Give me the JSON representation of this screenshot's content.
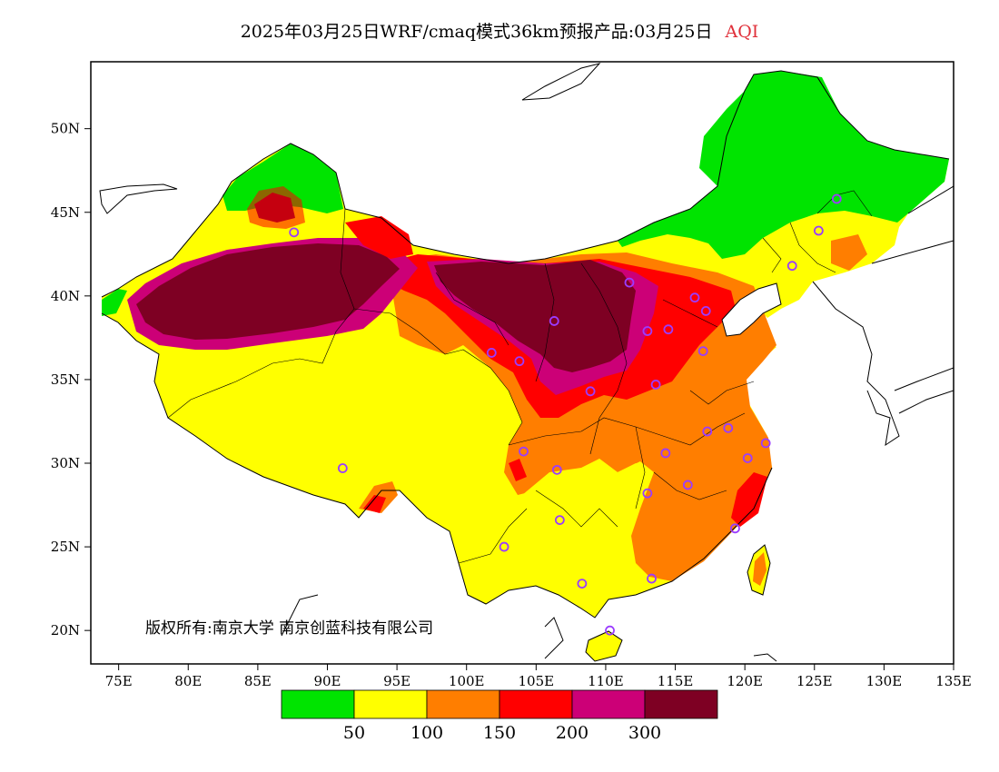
{
  "title": {
    "main": "2025年03月25日WRF/cmaq模式36km预报产品:03月25日",
    "variable": "AQI",
    "variable_color": "#e0303a"
  },
  "axes": {
    "lon_ticks": [
      "75E",
      "80E",
      "85E",
      "90E",
      "95E",
      "100E",
      "105E",
      "110E",
      "115E",
      "120E",
      "125E",
      "130E",
      "135E"
    ],
    "lat_ticks": [
      "20N",
      "25N",
      "30N",
      "35N",
      "40N",
      "45N",
      "50N"
    ]
  },
  "legend": {
    "colors": [
      "#00e400",
      "#ffff00",
      "#ff7e00",
      "#ff0000",
      "#cc0077",
      "#7e0023"
    ],
    "labels": [
      "50",
      "100",
      "150",
      "200",
      "300"
    ]
  },
  "copyright": "版权所有:南京大学 南京创蓝科技有限公司",
  "regions": [
    {
      "name": "northeast",
      "level": "good",
      "color": "#00e400"
    },
    {
      "name": "north-xinjiang",
      "level": "good",
      "color": "#00e400"
    },
    {
      "name": "tibet-west",
      "level": "moderate",
      "color": "#ffff00"
    },
    {
      "name": "south-central",
      "level": "usg",
      "color": "#ff7e00"
    },
    {
      "name": "north-china-plain",
      "level": "unhealthy",
      "color": "#ff0000"
    },
    {
      "name": "tarim-basin",
      "level": "hazardous",
      "color": "#7e0023"
    },
    {
      "name": "inner-mongolia-west",
      "level": "hazardous",
      "color": "#7e0023"
    }
  ],
  "stations": [
    [
      87.6,
      43.8
    ],
    [
      101.8,
      36.6
    ],
    [
      103.8,
      36.1
    ],
    [
      106.3,
      38.5
    ],
    [
      111.7,
      40.8
    ],
    [
      113.0,
      37.9
    ],
    [
      114.5,
      38.0
    ],
    [
      116.4,
      39.9
    ],
    [
      117.2,
      39.1
    ],
    [
      123.4,
      41.8
    ],
    [
      125.3,
      43.9
    ],
    [
      126.6,
      45.8
    ],
    [
      117.0,
      36.7
    ],
    [
      113.6,
      34.7
    ],
    [
      108.9,
      34.3
    ],
    [
      117.3,
      31.9
    ],
    [
      118.8,
      32.1
    ],
    [
      120.2,
      30.3
    ],
    [
      121.5,
      31.2
    ],
    [
      114.3,
      30.6
    ],
    [
      104.1,
      30.7
    ],
    [
      106.5,
      29.6
    ],
    [
      113.0,
      28.2
    ],
    [
      115.9,
      28.7
    ],
    [
      91.1,
      29.7
    ],
    [
      102.7,
      25.0
    ],
    [
      106.7,
      26.6
    ],
    [
      108.3,
      22.8
    ],
    [
      113.3,
      23.1
    ],
    [
      119.3,
      26.1
    ],
    [
      110.3,
      20.0
    ]
  ]
}
